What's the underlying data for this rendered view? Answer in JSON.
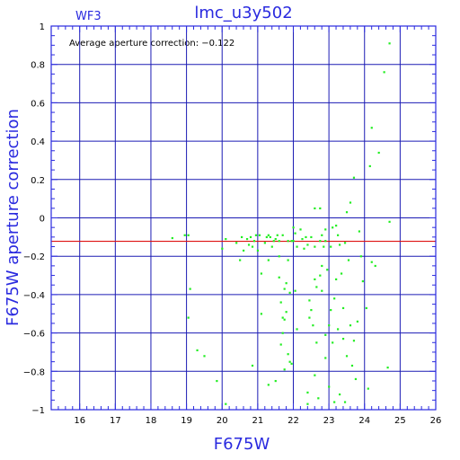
{
  "chart_data": {
    "type": "scatter",
    "title": "lmc_u3y502",
    "panel_label": "WF3",
    "annotation": "Average aperture correction: −0.122",
    "xlabel": "F675W",
    "ylabel": "F675W aperture correction",
    "xlim": [
      15.2,
      26
    ],
    "ylim": [
      -1,
      1
    ],
    "grid": true,
    "x_ticks": [
      {
        "value": 16,
        "label": "16"
      },
      {
        "value": 17,
        "label": "17"
      },
      {
        "value": 18,
        "label": "18"
      },
      {
        "value": 19,
        "label": "19"
      },
      {
        "value": 20,
        "label": "20"
      },
      {
        "value": 21,
        "label": "21"
      },
      {
        "value": 22,
        "label": "22"
      },
      {
        "value": 23,
        "label": "23"
      },
      {
        "value": 24,
        "label": "24"
      },
      {
        "value": 25,
        "label": "25"
      },
      {
        "value": 26,
        "label": "26"
      }
    ],
    "y_ticks": [
      {
        "value": 1,
        "label": "1"
      },
      {
        "value": 0.8,
        "label": "0.8"
      },
      {
        "value": 0.6,
        "label": "0.6"
      },
      {
        "value": 0.4,
        "label": "0.4"
      },
      {
        "value": 0.2,
        "label": "0.2"
      },
      {
        "value": 0,
        "label": "0"
      },
      {
        "value": -0.2,
        "label": "−0.2"
      },
      {
        "value": -0.4,
        "label": "−0.4"
      },
      {
        "value": -0.6,
        "label": "−0.6"
      },
      {
        "value": -0.8,
        "label": "−0.8"
      },
      {
        "value": -1,
        "label": "−1"
      }
    ],
    "average_line": -0.122,
    "points": [
      [
        18.6,
        -0.105
      ],
      [
        18.95,
        -0.09
      ],
      [
        19.05,
        -0.09
      ],
      [
        19.1,
        -0.37
      ],
      [
        19.05,
        -0.52
      ],
      [
        19.3,
        -0.69
      ],
      [
        19.5,
        -0.72
      ],
      [
        19.85,
        -0.85
      ],
      [
        20.0,
        -0.16
      ],
      [
        20.1,
        -0.11
      ],
      [
        20.1,
        -0.97
      ],
      [
        20.4,
        -0.13
      ],
      [
        20.5,
        -0.22
      ],
      [
        20.55,
        -0.1
      ],
      [
        20.6,
        -0.17
      ],
      [
        20.7,
        -0.11
      ],
      [
        20.75,
        -0.14
      ],
      [
        20.8,
        -0.1
      ],
      [
        20.85,
        -0.15
      ],
      [
        20.85,
        -0.77
      ],
      [
        20.9,
        -0.12
      ],
      [
        20.95,
        -0.09
      ],
      [
        21.0,
        -0.17
      ],
      [
        21.05,
        -0.09
      ],
      [
        21.1,
        -0.29
      ],
      [
        21.1,
        -0.5
      ],
      [
        21.2,
        -0.13
      ],
      [
        21.25,
        -0.1
      ],
      [
        21.3,
        -0.09
      ],
      [
        21.3,
        -0.22
      ],
      [
        21.3,
        -0.87
      ],
      [
        21.35,
        -0.1
      ],
      [
        21.4,
        -0.15
      ],
      [
        21.45,
        -0.12
      ],
      [
        21.5,
        -0.11
      ],
      [
        21.5,
        -0.85
      ],
      [
        21.55,
        -0.09
      ],
      [
        21.6,
        -0.2
      ],
      [
        21.6,
        -0.12
      ],
      [
        21.6,
        -0.31
      ],
      [
        21.65,
        -0.44
      ],
      [
        21.65,
        -0.66
      ],
      [
        21.7,
        -0.09
      ],
      [
        21.7,
        -0.52
      ],
      [
        21.7,
        -0.6
      ],
      [
        21.75,
        -0.37
      ],
      [
        21.75,
        -0.53
      ],
      [
        21.75,
        -0.79
      ],
      [
        21.8,
        -0.34
      ],
      [
        21.8,
        -0.49
      ],
      [
        21.85,
        -0.12
      ],
      [
        21.85,
        -0.22
      ],
      [
        21.85,
        -0.71
      ],
      [
        21.9,
        -0.39
      ],
      [
        21.9,
        -0.75
      ],
      [
        21.95,
        -0.12
      ],
      [
        21.95,
        -0.76
      ],
      [
        22.0,
        -0.05
      ],
      [
        22.0,
        -0.12
      ],
      [
        22.05,
        -0.08
      ],
      [
        22.05,
        -0.38
      ],
      [
        22.1,
        -0.15
      ],
      [
        22.1,
        -0.58
      ],
      [
        22.2,
        -0.06
      ],
      [
        22.25,
        -0.11
      ],
      [
        22.3,
        -0.16
      ],
      [
        22.35,
        -0.1
      ],
      [
        22.4,
        -0.14
      ],
      [
        22.4,
        -0.91
      ],
      [
        22.4,
        -0.97
      ],
      [
        22.45,
        -0.43
      ],
      [
        22.45,
        -0.52
      ],
      [
        22.5,
        -0.1
      ],
      [
        22.5,
        -0.48
      ],
      [
        22.55,
        -0.56
      ],
      [
        22.6,
        0.05
      ],
      [
        22.6,
        -0.15
      ],
      [
        22.6,
        -0.32
      ],
      [
        22.6,
        -0.82
      ],
      [
        22.65,
        -0.36
      ],
      [
        22.65,
        -0.65
      ],
      [
        22.7,
        -0.94
      ],
      [
        22.75,
        0.05
      ],
      [
        22.75,
        -0.12
      ],
      [
        22.75,
        -0.3
      ],
      [
        22.8,
        -0.09
      ],
      [
        22.8,
        -0.25
      ],
      [
        22.8,
        -0.38
      ],
      [
        22.85,
        -0.15
      ],
      [
        22.9,
        -0.06
      ],
      [
        22.9,
        -0.12
      ],
      [
        22.9,
        -0.61
      ],
      [
        22.9,
        -0.73
      ],
      [
        22.95,
        -0.27
      ],
      [
        23.0,
        -0.56
      ],
      [
        23.0,
        -0.88
      ],
      [
        23.05,
        -0.15
      ],
      [
        23.05,
        -0.48
      ],
      [
        23.1,
        -0.05
      ],
      [
        23.1,
        -0.65
      ],
      [
        23.15,
        -0.42
      ],
      [
        23.15,
        -0.96
      ],
      [
        23.2,
        -0.04
      ],
      [
        23.2,
        -0.32
      ],
      [
        23.25,
        -0.09
      ],
      [
        23.25,
        -0.58
      ],
      [
        23.3,
        -0.14
      ],
      [
        23.3,
        -0.92
      ],
      [
        23.35,
        -0.29
      ],
      [
        23.4,
        -0.47
      ],
      [
        23.4,
        -0.63
      ],
      [
        23.45,
        -0.13
      ],
      [
        23.45,
        -0.96
      ],
      [
        23.5,
        0.03
      ],
      [
        23.5,
        -0.72
      ],
      [
        23.55,
        -0.22
      ],
      [
        23.6,
        0.08
      ],
      [
        23.6,
        -0.56
      ],
      [
        23.65,
        -0.77
      ],
      [
        23.7,
        0.21
      ],
      [
        23.7,
        -0.64
      ],
      [
        23.75,
        -0.84
      ],
      [
        23.8,
        -0.54
      ],
      [
        23.85,
        -0.07
      ],
      [
        23.9,
        -0.2
      ],
      [
        23.95,
        -0.33
      ],
      [
        24.05,
        -0.47
      ],
      [
        24.1,
        -0.89
      ],
      [
        24.15,
        0.27
      ],
      [
        24.2,
        0.47
      ],
      [
        24.2,
        -0.23
      ],
      [
        24.3,
        -0.25
      ],
      [
        24.4,
        0.34
      ],
      [
        24.55,
        0.76
      ],
      [
        24.65,
        -0.78
      ],
      [
        24.7,
        -0.02
      ],
      [
        24.7,
        0.91
      ]
    ],
    "colors": {
      "axes": "#2a2adf",
      "grid": "#1b1bb4",
      "points": "#22ee22",
      "average_line": "#dd1111",
      "tick_text": "#000000"
    }
  }
}
